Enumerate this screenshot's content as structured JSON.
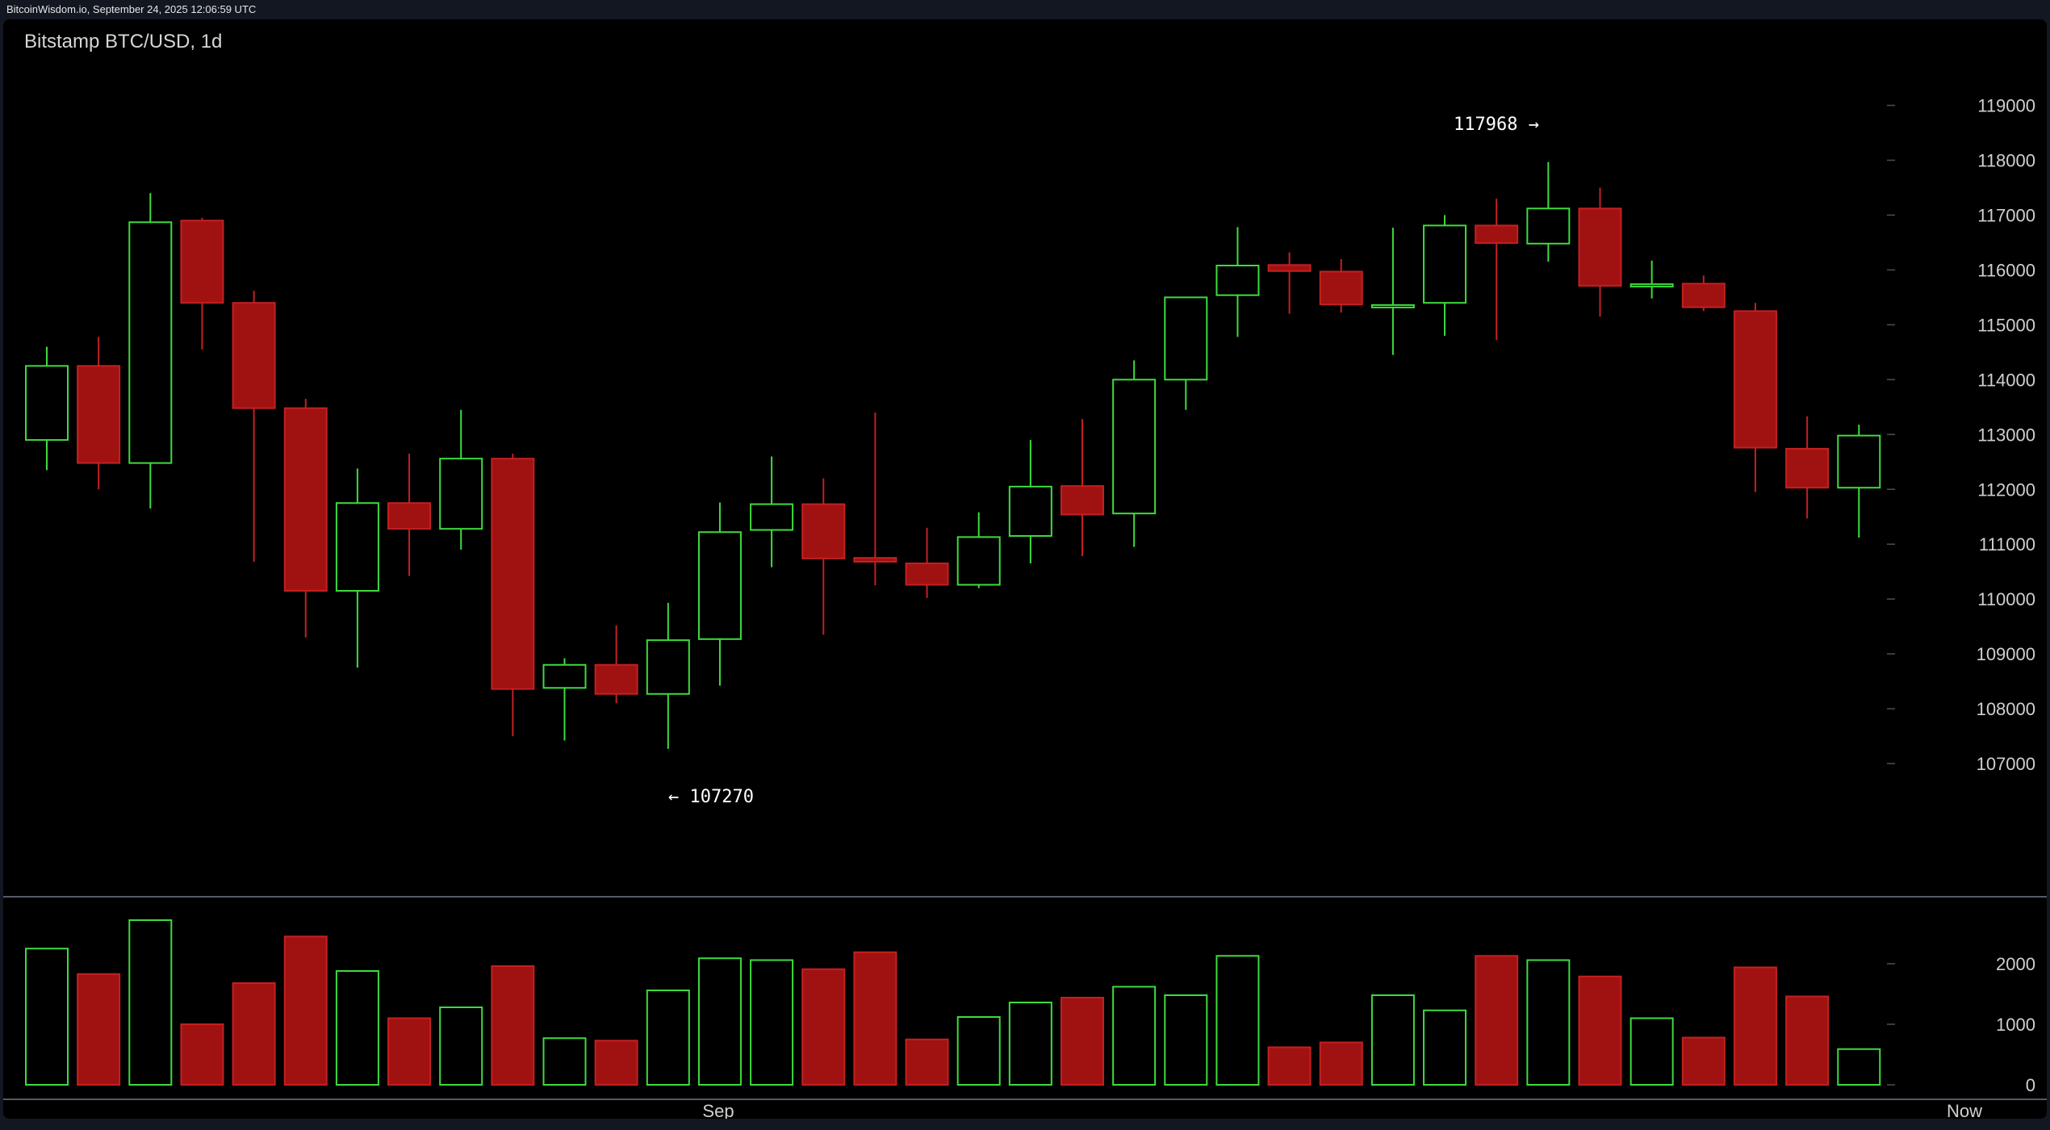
{
  "header": {
    "source_line": "BitcoinWisdom.io, September 24, 2025 12:06:59 UTC"
  },
  "chart_data": {
    "type": "candlestick",
    "title": "Bitstamp BTC/USD, 1d",
    "price_axis": {
      "ticks": [
        "119000",
        "118000",
        "117000",
        "116000",
        "115000",
        "114000",
        "113000",
        "112000",
        "111000",
        "110000",
        "109000",
        "108000",
        "107000"
      ],
      "range": [
        106000,
        119950
      ]
    },
    "volume_axis": {
      "ticks": [
        "2000",
        "1000",
        "0"
      ],
      "range": [
        0,
        3000
      ]
    },
    "x_labels": [
      "Sep",
      "Now"
    ],
    "annotations": {
      "high": "117968 →",
      "low": "← 107270"
    },
    "colors": {
      "up": "#3ddc3d",
      "down": "#a01212",
      "down_edge": "#c42020",
      "background": "#000000"
    },
    "candles": [
      {
        "o": 112900,
        "h": 114600,
        "l": 112350,
        "c": 114250,
        "v": 2250
      },
      {
        "o": 114250,
        "h": 114780,
        "l": 112000,
        "c": 112480,
        "v": 1830
      },
      {
        "o": 112480,
        "h": 117400,
        "l": 111650,
        "c": 116870,
        "v": 2720
      },
      {
        "o": 116900,
        "h": 116950,
        "l": 114550,
        "c": 115400,
        "v": 1000
      },
      {
        "o": 115400,
        "h": 115620,
        "l": 110680,
        "c": 113480,
        "v": 1680
      },
      {
        "o": 113480,
        "h": 113650,
        "l": 109300,
        "c": 110150,
        "v": 2450
      },
      {
        "o": 110150,
        "h": 112380,
        "l": 108750,
        "c": 111750,
        "v": 1880
      },
      {
        "o": 111750,
        "h": 112650,
        "l": 110420,
        "c": 111280,
        "v": 1100
      },
      {
        "o": 111280,
        "h": 113450,
        "l": 110900,
        "c": 112560,
        "v": 1280
      },
      {
        "o": 112560,
        "h": 112650,
        "l": 107500,
        "c": 108360,
        "v": 1960
      },
      {
        "o": 108380,
        "h": 108920,
        "l": 107420,
        "c": 108800,
        "v": 770
      },
      {
        "o": 108800,
        "h": 109520,
        "l": 108100,
        "c": 108270,
        "v": 730
      },
      {
        "o": 108270,
        "h": 109930,
        "l": 107270,
        "c": 109250,
        "v": 1560
      },
      {
        "o": 109270,
        "h": 111760,
        "l": 108420,
        "c": 111220,
        "v": 2090
      },
      {
        "o": 111260,
        "h": 112600,
        "l": 110580,
        "c": 111730,
        "v": 2060
      },
      {
        "o": 111730,
        "h": 112200,
        "l": 109350,
        "c": 110740,
        "v": 1910
      },
      {
        "o": 110750,
        "h": 113400,
        "l": 110250,
        "c": 110680,
        "v": 2190
      },
      {
        "o": 110650,
        "h": 111300,
        "l": 110020,
        "c": 110260,
        "v": 750
      },
      {
        "o": 110260,
        "h": 111580,
        "l": 110200,
        "c": 111130,
        "v": 1120
      },
      {
        "o": 111150,
        "h": 112900,
        "l": 110650,
        "c": 112050,
        "v": 1360
      },
      {
        "o": 112060,
        "h": 113280,
        "l": 110780,
        "c": 111540,
        "v": 1440
      },
      {
        "o": 111560,
        "h": 114350,
        "l": 110950,
        "c": 114000,
        "v": 1620
      },
      {
        "o": 114000,
        "h": 115500,
        "l": 113450,
        "c": 115500,
        "v": 1480
      },
      {
        "o": 115540,
        "h": 116780,
        "l": 114780,
        "c": 116080,
        "v": 2130
      },
      {
        "o": 116090,
        "h": 116320,
        "l": 115200,
        "c": 115980,
        "v": 620
      },
      {
        "o": 115970,
        "h": 116200,
        "l": 115220,
        "c": 115370,
        "v": 700
      },
      {
        "o": 115330,
        "h": 116770,
        "l": 114450,
        "c": 115360,
        "v": 1480
      },
      {
        "o": 115400,
        "h": 117000,
        "l": 114800,
        "c": 116810,
        "v": 1230
      },
      {
        "o": 116810,
        "h": 117300,
        "l": 114720,
        "c": 116490,
        "v": 2130
      },
      {
        "o": 116480,
        "h": 117968,
        "l": 116150,
        "c": 117120,
        "v": 2060
      },
      {
        "o": 117120,
        "h": 117500,
        "l": 115150,
        "c": 115710,
        "v": 1790
      },
      {
        "o": 115720,
        "h": 116170,
        "l": 115480,
        "c": 115740,
        "v": 1100
      },
      {
        "o": 115750,
        "h": 115900,
        "l": 115250,
        "c": 115320,
        "v": 780
      },
      {
        "o": 115250,
        "h": 115400,
        "l": 111950,
        "c": 112760,
        "v": 1940
      },
      {
        "o": 112740,
        "h": 113330,
        "l": 111470,
        "c": 112030,
        "v": 1460
      },
      {
        "o": 112030,
        "h": 113180,
        "l": 111120,
        "c": 112980,
        "v": 590
      }
    ]
  }
}
